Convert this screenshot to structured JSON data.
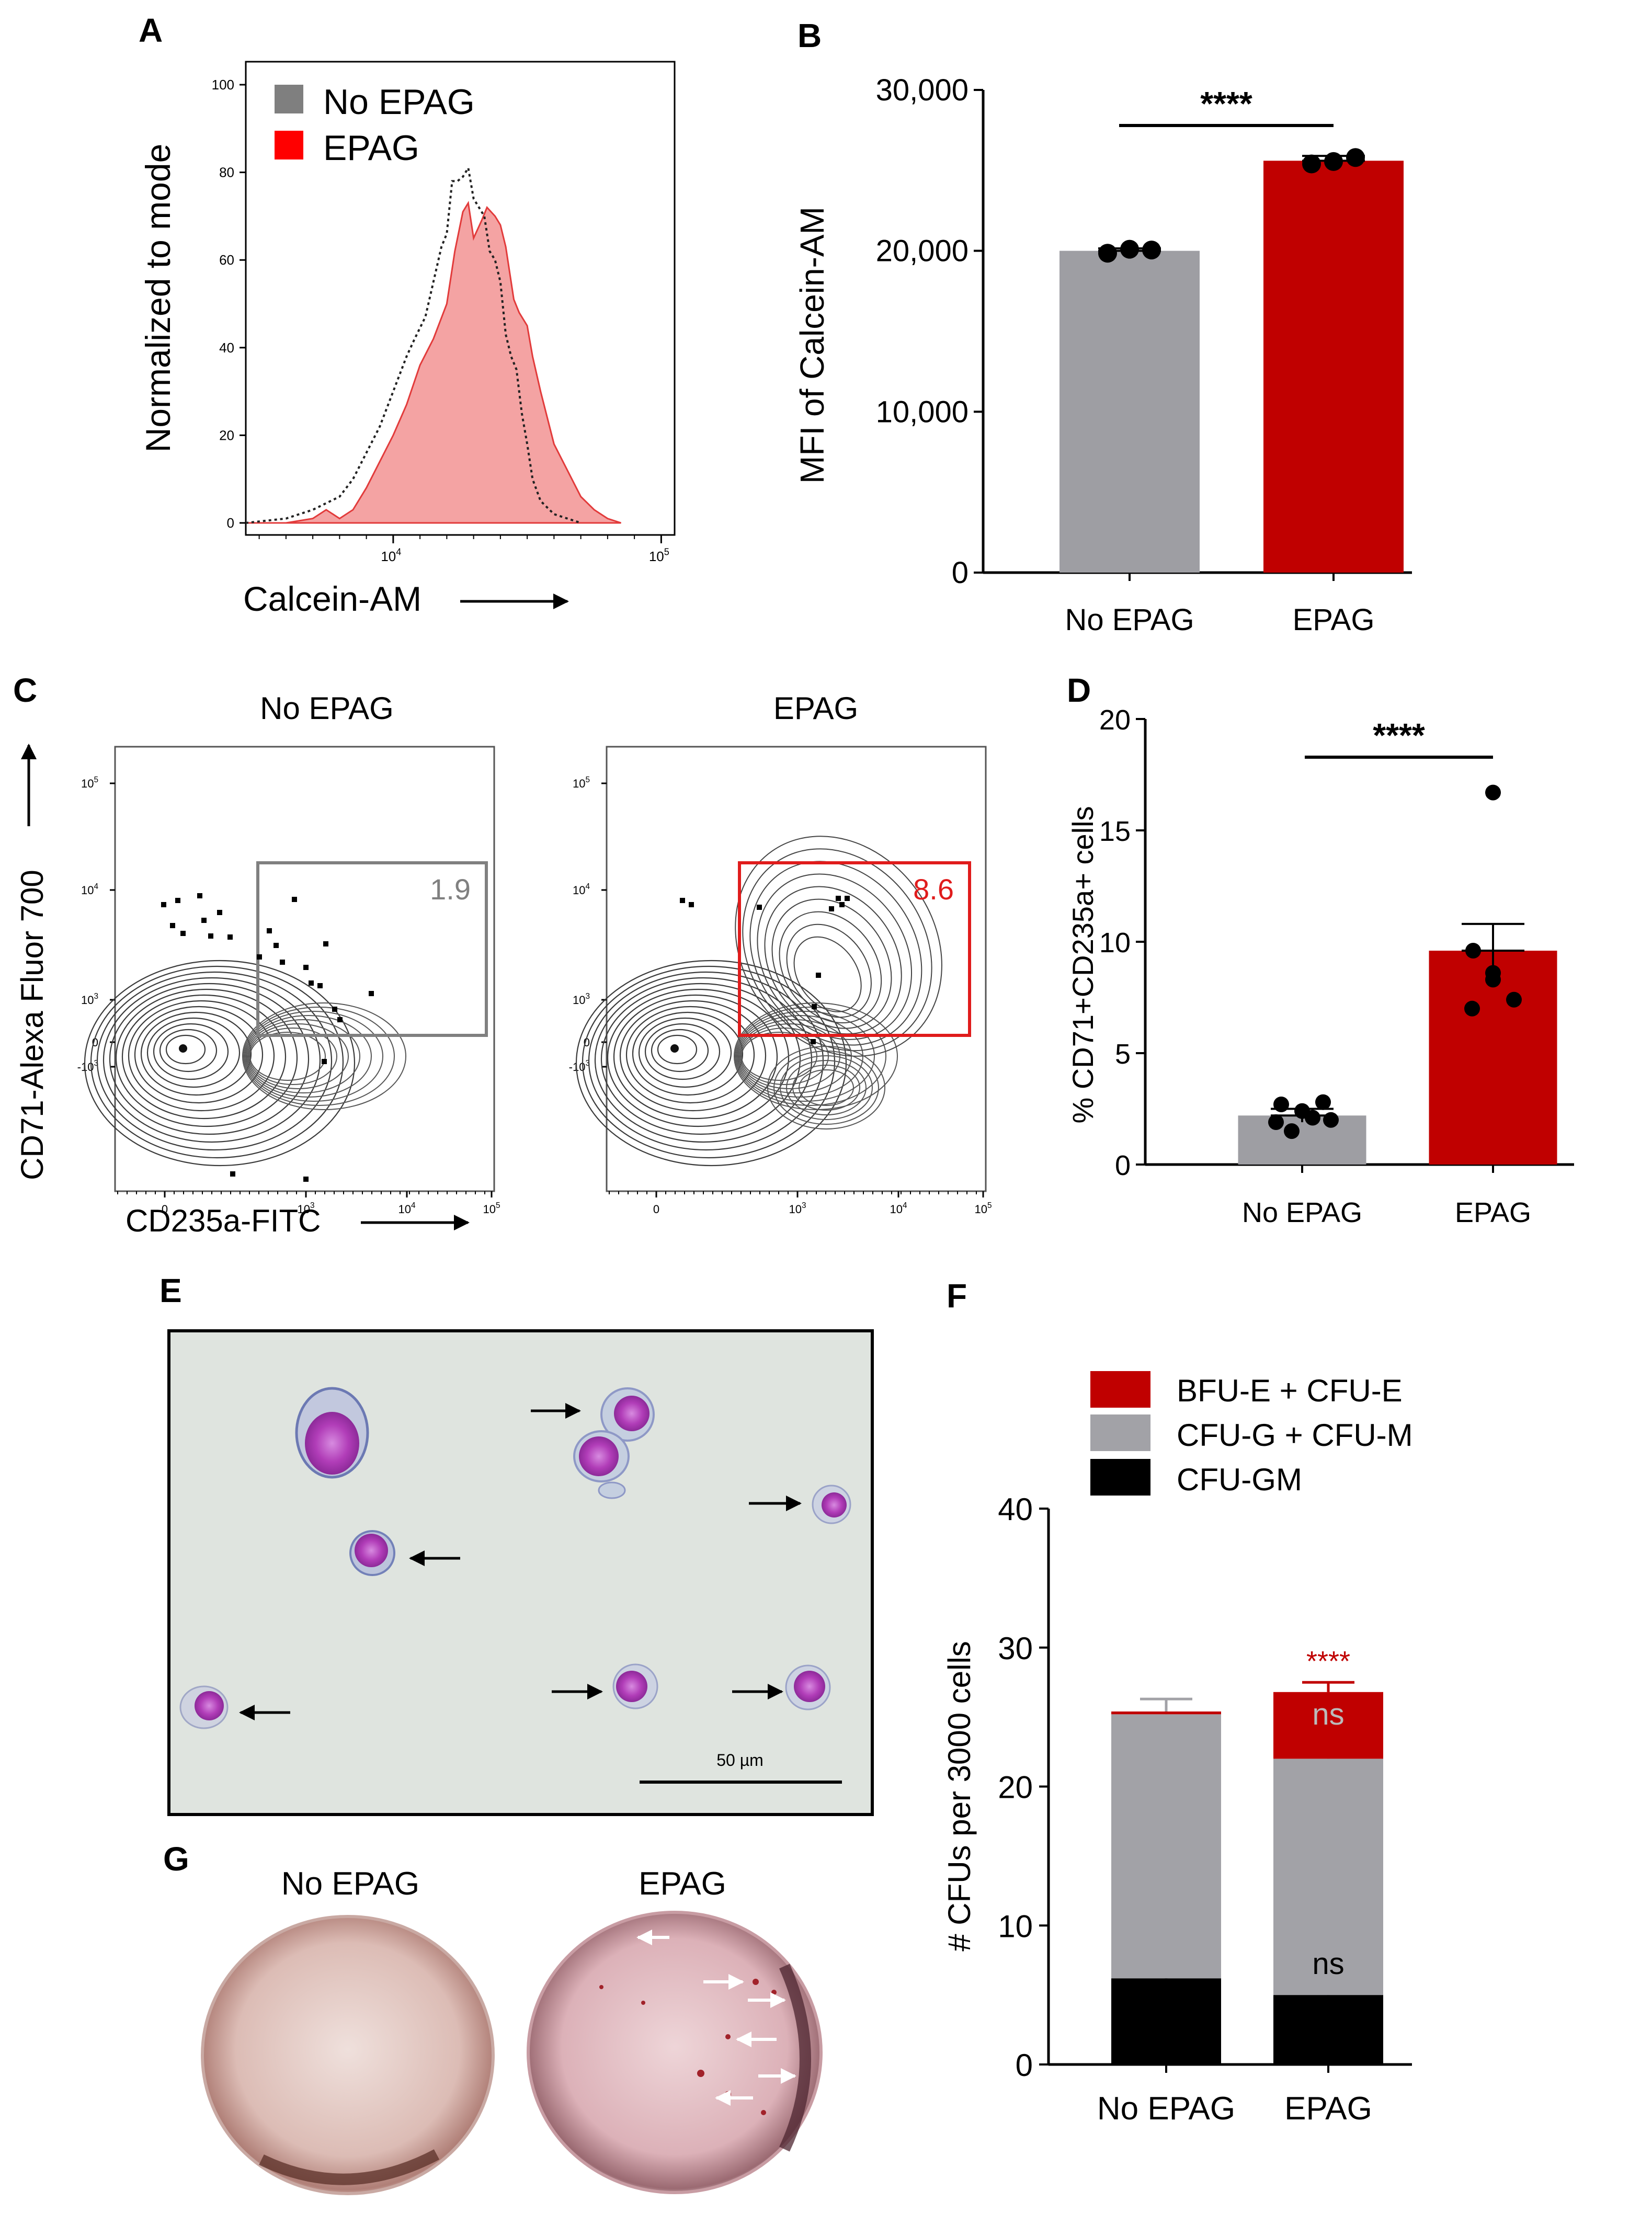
{
  "panel_labels": {
    "a": "A",
    "b": "B",
    "c": "C",
    "d": "D",
    "e": "E",
    "f": "F",
    "g": "G"
  },
  "colors": {
    "grey": "#9e9ea3",
    "red": "#c00000",
    "grey_legend": "#7f7f7f",
    "red_legend": "#ff0000",
    "hist_fill": "#f4a3a3"
  },
  "chart_data": [
    {
      "id": "A",
      "type": "area",
      "xlabel": "Calcein-AM",
      "ylabel": "Normalized to mode",
      "y_ticks": [
        "0",
        "20",
        "40",
        "60",
        "80",
        "100"
      ],
      "x_ticks": [
        "10",
        "10"
      ],
      "x_tick_exps": [
        "4",
        "5"
      ],
      "xlim_log10": [
        3.45,
        5.05
      ],
      "ylim": [
        0,
        100
      ],
      "legend": [
        "No EPAG",
        "EPAG"
      ],
      "series": [
        {
          "name": "No EPAG",
          "style": "dotted",
          "x": [
            3.45,
            3.6,
            3.7,
            3.8,
            3.85,
            3.9,
            3.95,
            4.0,
            4.05,
            4.08,
            4.12,
            4.15,
            4.18,
            4.2,
            4.22,
            4.24,
            4.26,
            4.28,
            4.3,
            4.32,
            4.34,
            4.36,
            4.38,
            4.4,
            4.42,
            4.44,
            4.46,
            4.48,
            4.5,
            4.52,
            4.55,
            4.6,
            4.65,
            4.7
          ],
          "y": [
            0,
            1,
            3,
            6,
            10,
            16,
            22,
            30,
            38,
            42,
            47,
            55,
            63,
            66,
            78,
            78,
            79,
            81,
            74,
            72,
            70,
            62,
            60,
            55,
            43,
            38,
            35,
            25,
            18,
            10,
            5,
            2,
            1,
            0
          ]
        },
        {
          "name": "EPAG",
          "style": "filled",
          "x": [
            3.45,
            3.6,
            3.7,
            3.75,
            3.8,
            3.85,
            3.9,
            3.95,
            4.0,
            4.05,
            4.1,
            4.15,
            4.2,
            4.23,
            4.26,
            4.28,
            4.3,
            4.33,
            4.35,
            4.38,
            4.4,
            4.42,
            4.45,
            4.47,
            4.5,
            4.52,
            4.55,
            4.6,
            4.65,
            4.7,
            4.75,
            4.8,
            4.85
          ],
          "y": [
            0,
            0,
            1,
            3,
            1,
            3,
            8,
            14,
            20,
            27,
            36,
            42,
            50,
            62,
            71,
            73,
            65,
            69,
            72,
            70,
            68,
            63,
            51,
            48,
            45,
            38,
            30,
            18,
            12,
            6,
            3,
            1,
            0
          ]
        }
      ]
    },
    {
      "id": "B",
      "type": "bar",
      "ylabel": "MFI of Calcein-AM",
      "categories": [
        "No EPAG",
        "EPAG"
      ],
      "values": [
        20000,
        25600
      ],
      "errors": [
        150,
        300
      ],
      "points": [
        [
          19850,
          20100,
          20050
        ],
        [
          25400,
          25550,
          25800
        ]
      ],
      "ylim": [
        0,
        30000
      ],
      "y_ticks": [
        "0",
        "10,000",
        "20,000",
        "30,000"
      ],
      "significance": "****"
    },
    {
      "id": "C",
      "type": "scatter",
      "xlabel": "CD235a-FITC",
      "ylabel": "CD71-Alexa Fluor 700",
      "x_ticks": [
        "0",
        "10",
        "10",
        "10"
      ],
      "x_tick_exps": [
        "",
        "3",
        "4",
        "5"
      ],
      "y_ticks": [
        "-10",
        "0",
        "10",
        "10",
        "10"
      ],
      "y_tick_exps": [
        "3",
        "",
        "3",
        "4",
        "5"
      ],
      "subplots": [
        {
          "title": "No EPAG",
          "gate_percent": "1.9"
        },
        {
          "title": "EPAG",
          "gate_percent": "8.6"
        }
      ]
    },
    {
      "id": "D",
      "type": "bar",
      "ylabel": "% CD71+CD235a+ cells",
      "categories": [
        "No EPAG",
        "EPAG"
      ],
      "values": [
        2.2,
        9.6
      ],
      "errors": [
        0.3,
        1.2
      ],
      "points": [
        [
          2.7,
          2.4,
          2.8,
          1.9,
          2.0,
          1.5,
          2.1
        ],
        [
          16.7,
          8.3,
          9.6,
          7.4,
          7.0,
          8.6
        ]
      ],
      "ylim": [
        0,
        20
      ],
      "y_ticks": [
        "0",
        "5",
        "10",
        "15",
        "20"
      ],
      "significance": "****"
    },
    {
      "id": "F",
      "type": "bar",
      "stacked": true,
      "ylabel": "# CFUs per 3000 cells",
      "categories": [
        "No EPAG",
        "EPAG"
      ],
      "ylim": [
        0,
        40
      ],
      "y_ticks": [
        "0",
        "10",
        "20",
        "30",
        "40"
      ],
      "series": [
        {
          "name": "CFU-GM",
          "values": [
            6.2,
            5.0
          ],
          "errors": [
            0.6,
            0.5
          ]
        },
        {
          "name": "CFU-G + CFU-M",
          "values": [
            19.0,
            17.0
          ],
          "errors": [
            1.1,
            0.7
          ]
        },
        {
          "name": "BFU-E + CFU-E",
          "values": [
            0.2,
            4.8
          ],
          "errors": [
            0.0,
            0.7
          ]
        }
      ],
      "legend": [
        "BFU-E + CFU-E",
        "CFU-G + CFU-M",
        "CFU-GM"
      ],
      "annotations": {
        "red_sig": "****",
        "ns_1": "ns",
        "ns_2": "ns"
      }
    }
  ],
  "panel_e": {
    "scale_bar": "50 µm"
  },
  "panel_g": {
    "labels": [
      "No EPAG",
      "EPAG"
    ]
  }
}
